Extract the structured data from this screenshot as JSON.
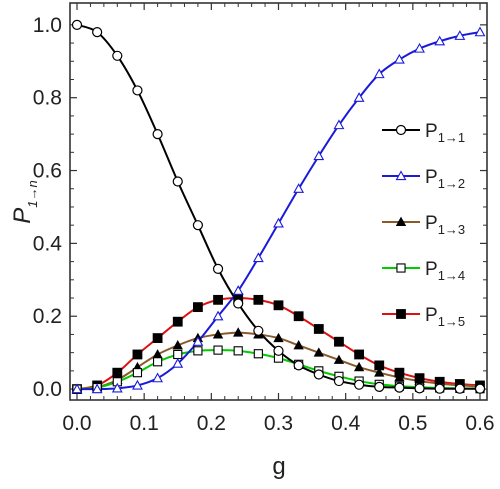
{
  "chart_data": {
    "type": "line",
    "title": "",
    "xlabel": "g",
    "ylabel": "P",
    "ylabel_sub": "1→n",
    "xlim": [
      0.0,
      0.6
    ],
    "ylim": [
      -0.03,
      1.06
    ],
    "xticks": [
      0.0,
      0.1,
      0.2,
      0.3,
      0.4,
      0.5,
      0.6
    ],
    "xtick_labels": [
      "0.0",
      "0.1",
      "0.2",
      "0.3",
      "0.4",
      "0.5",
      "0.6"
    ],
    "yticks": [
      0.0,
      0.2,
      0.4,
      0.6,
      0.8,
      1.0
    ],
    "ytick_labels": [
      "0.0",
      "0.2",
      "0.4",
      "0.6",
      "0.8",
      "1.0"
    ],
    "grid": false,
    "legend_position": "right",
    "x": [
      0.0,
      0.03,
      0.06,
      0.09,
      0.12,
      0.15,
      0.18,
      0.21,
      0.24,
      0.27,
      0.3,
      0.33,
      0.36,
      0.39,
      0.42,
      0.45,
      0.48,
      0.51,
      0.54,
      0.57,
      0.6
    ],
    "series": [
      {
        "name": "P",
        "name_sub": "1→1",
        "color": "#000000",
        "marker": "circle-open",
        "values": [
          1.0,
          0.98,
          0.915,
          0.82,
          0.7,
          0.57,
          0.45,
          0.33,
          0.235,
          0.16,
          0.105,
          0.065,
          0.04,
          0.022,
          0.012,
          0.006,
          0.004,
          0.002,
          0.001,
          0.001,
          0.001
        ]
      },
      {
        "name": "P",
        "name_sub": "1→2",
        "color": "#1a1adb",
        "marker": "triangle-open",
        "values": [
          0.0,
          0.0,
          0.002,
          0.01,
          0.03,
          0.07,
          0.13,
          0.2,
          0.27,
          0.36,
          0.455,
          0.55,
          0.64,
          0.725,
          0.8,
          0.865,
          0.905,
          0.935,
          0.955,
          0.97,
          0.98
        ]
      },
      {
        "name": "P",
        "name_sub": "1→3",
        "color": "#8b5a2b",
        "marker": "triangle-filled",
        "values": [
          0.0,
          0.005,
          0.025,
          0.06,
          0.095,
          0.12,
          0.14,
          0.15,
          0.155,
          0.15,
          0.14,
          0.12,
          0.1,
          0.08,
          0.06,
          0.045,
          0.032,
          0.022,
          0.015,
          0.01,
          0.007
        ]
      },
      {
        "name": "P",
        "name_sub": "1→4",
        "color": "#00cc00",
        "marker": "square-open",
        "values": [
          0.0,
          0.004,
          0.02,
          0.045,
          0.075,
          0.095,
          0.105,
          0.107,
          0.105,
          0.097,
          0.085,
          0.068,
          0.05,
          0.035,
          0.022,
          0.013,
          0.008,
          0.005,
          0.003,
          0.002,
          0.001
        ]
      },
      {
        "name": "P",
        "name_sub": "1→5",
        "color": "#dd1111",
        "marker": "square-filled",
        "values": [
          0.0,
          0.01,
          0.045,
          0.095,
          0.14,
          0.185,
          0.225,
          0.245,
          0.25,
          0.245,
          0.23,
          0.2,
          0.165,
          0.13,
          0.095,
          0.065,
          0.045,
          0.03,
          0.02,
          0.014,
          0.01
        ]
      }
    ]
  }
}
